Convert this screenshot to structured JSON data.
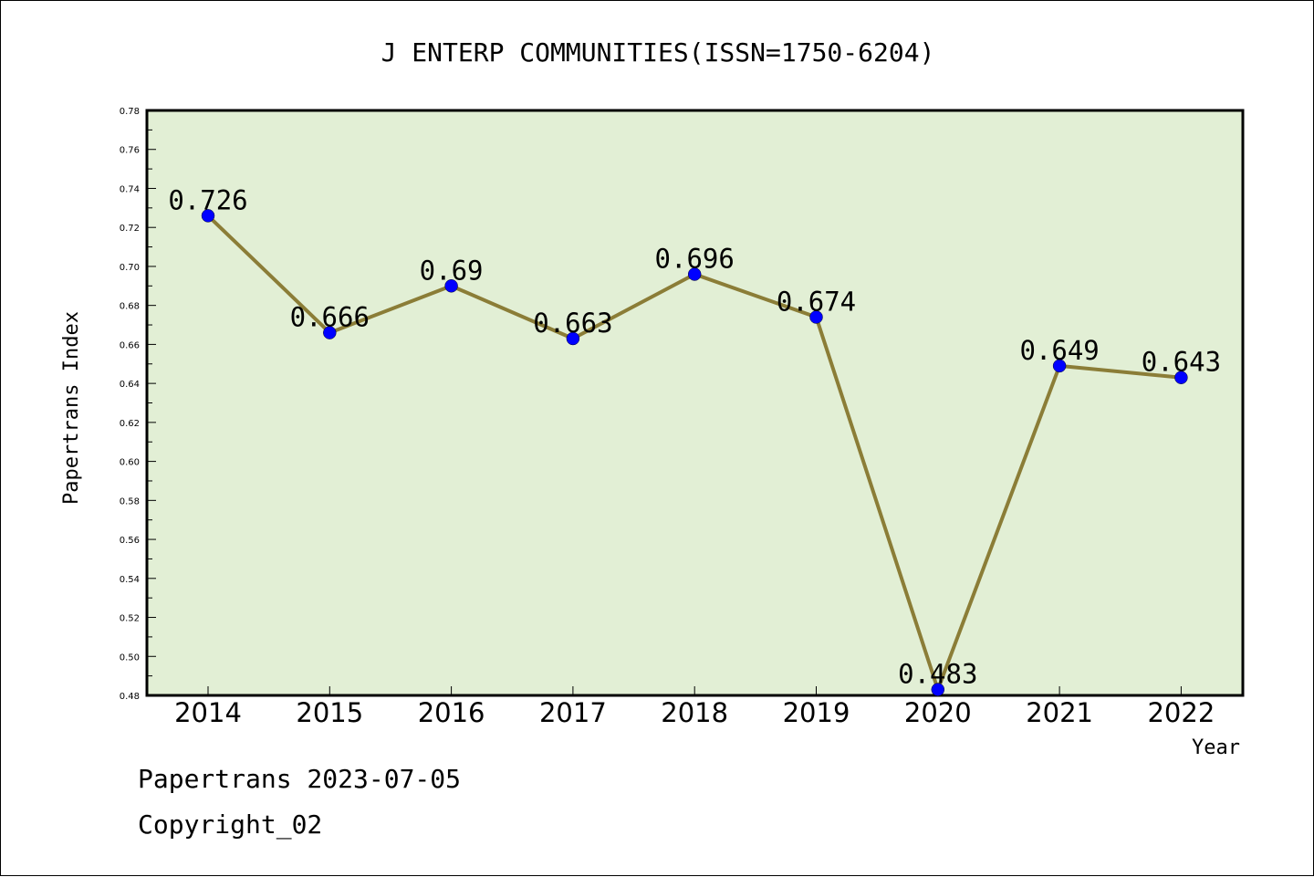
{
  "chart_data": {
    "type": "line",
    "title": "J ENTERP COMMUNITIES(ISSN=1750-6204)",
    "xlabel": "Year",
    "ylabel": "Papertrans Index",
    "categories": [
      "2014",
      "2015",
      "2016",
      "2017",
      "2018",
      "2019",
      "2020",
      "2021",
      "2022"
    ],
    "series": [
      {
        "values": [
          0.726,
          0.666,
          0.69,
          0.663,
          0.696,
          0.674,
          0.483,
          0.649,
          0.643
        ],
        "labels": [
          "0.726",
          "0.666",
          "0.69",
          "0.663",
          "0.696",
          "0.674",
          "0.483",
          "0.649",
          "0.643"
        ]
      }
    ],
    "ylim": [
      0.48,
      0.78
    ],
    "yticks": [
      "0.48",
      "0.50",
      "0.52",
      "0.54",
      "0.56",
      "0.58",
      "0.60",
      "0.62",
      "0.64",
      "0.66",
      "0.68",
      "0.70",
      "0.72",
      "0.74",
      "0.76",
      "0.78"
    ],
    "grid": false,
    "colors": {
      "plot_background": "#e2efd5",
      "line": "#8b7d37",
      "marker": "#0000ff"
    }
  },
  "footer": {
    "date_text": "Papertrans 2023-07-05",
    "copyright_text": "Copyright_02"
  }
}
